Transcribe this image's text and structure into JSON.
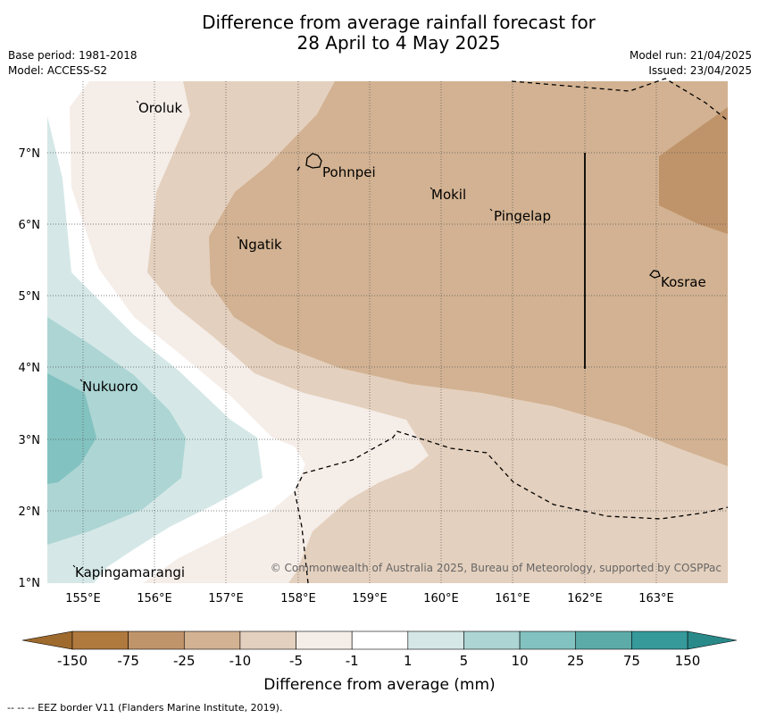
{
  "title_line1": "Difference from average rainfall forecast for",
  "title_line2": "28 April to 4 May 2025",
  "base_period": "Base period: 1981-2018",
  "model": "Model: ACCESS-S2",
  "model_run": "Model run: 21/04/2025",
  "issued": "Issued: 23/04/2025",
  "copyright": "© Commonwealth of Australia 2025, Bureau of Meteorology, supported by COSPPac",
  "footnote": "--  --  -- EEZ border V11 (Flanders Marine Institute, 2019).",
  "lon_ticks": [
    "155°E",
    "156°E",
    "157°E",
    "158°E",
    "159°E",
    "160°E",
    "161°E",
    "162°E",
    "163°E"
  ],
  "lat_ticks": [
    "7°N",
    "6°N",
    "5°N",
    "4°N",
    "3°N",
    "2°N",
    "1°N"
  ],
  "places": [
    {
      "name": "Oroluk"
    },
    {
      "name": "Pohnpei"
    },
    {
      "name": "Mokil"
    },
    {
      "name": "Pingelap"
    },
    {
      "name": "Ngatik"
    },
    {
      "name": "Kosrae"
    },
    {
      "name": "Nukuoro"
    },
    {
      "name": "Kapingamarangi"
    }
  ],
  "colorbar": {
    "label": "Difference from average (mm)",
    "tick_labels": [
      "-150",
      "-75",
      "-25",
      "-10",
      "-5",
      "-1",
      "1",
      "5",
      "10",
      "25",
      "75",
      "150"
    ],
    "colors": [
      "#b0793e",
      "#c0946a",
      "#d2b292",
      "#e4d0be",
      "#f5ede8",
      "#ffffff",
      "#d5e8e7",
      "#acd5d4",
      "#82c2c0",
      "#5caba9",
      "#36999a"
    ],
    "low_color": "#9e6a2e",
    "high_color": "#2a8a8a"
  },
  "colors": {
    "grid": "#555555",
    "eez": "#000000"
  }
}
